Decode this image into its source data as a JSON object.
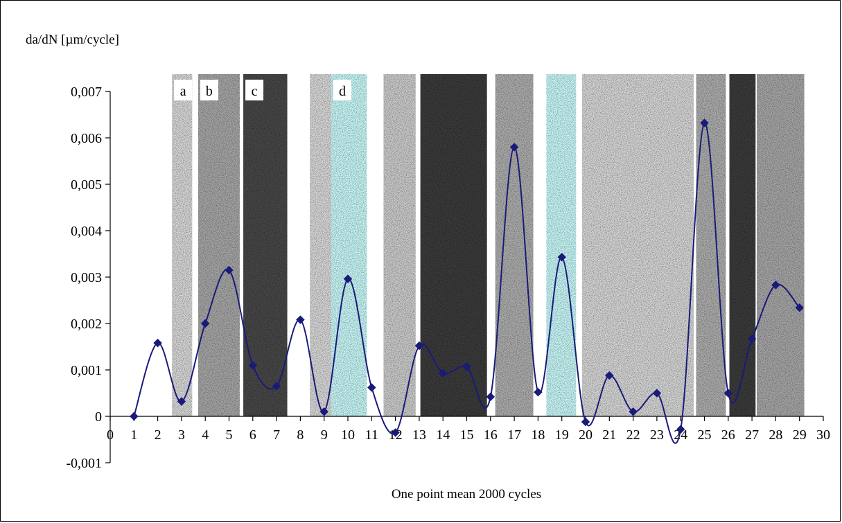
{
  "chart_data": {
    "type": "line",
    "title": "",
    "ylabel": "da/dN [µm/cycle]",
    "xlabel": "One point mean 2000 cycles",
    "xlim": [
      0,
      30
    ],
    "ylim": [
      -0.001,
      0.007
    ],
    "x_ticks": [
      "0",
      "1",
      "2",
      "3",
      "4",
      "5",
      "6",
      "7",
      "8",
      "9",
      "10",
      "11",
      "12",
      "13",
      "14",
      "15",
      "16",
      "17",
      "18",
      "19",
      "20",
      "21",
      "22",
      "23",
      "24",
      "25",
      "26",
      "27",
      "28",
      "29",
      "30"
    ],
    "y_ticks": [
      "-0,001",
      "0",
      "0,001",
      "0,002",
      "0,003",
      "0,004",
      "0,005",
      "0,006",
      "0,007"
    ],
    "y_tick_values": [
      -0.001,
      0,
      0.001,
      0.002,
      0.003,
      0.004,
      0.005,
      0.006,
      0.007
    ],
    "grid": false,
    "legend": "none",
    "series": [
      {
        "x": [
          1,
          2,
          3,
          4,
          5,
          6,
          7,
          8,
          9,
          10,
          11,
          12,
          13,
          14,
          15,
          16,
          17,
          18,
          19,
          20,
          21,
          22,
          23,
          24,
          25,
          26,
          27,
          28,
          29
        ],
        "values": [
          0,
          0.00158,
          0.00032,
          0.002,
          0.00315,
          0.0011,
          0.00065,
          0.00208,
          0.0001,
          0.00296,
          0.00062,
          -0.00035,
          0.00152,
          0.00093,
          0.00107,
          0.00042,
          0.0058,
          0.00052,
          0.00343,
          -0.00012,
          0.00088,
          0.0001,
          0.0005,
          -0.00028,
          0.00632,
          0.0005,
          0.00167,
          0.00283,
          0.00234
        ],
        "color": "#1a1a7a"
      }
    ],
    "bands": [
      {
        "x0": 2.6,
        "x1": 3.45,
        "label": "a",
        "fill": "#dcdcdc"
      },
      {
        "x0": 3.7,
        "x1": 5.45,
        "label": "b",
        "fill": "#a9a9a9"
      },
      {
        "x0": 5.6,
        "x1": 7.45,
        "label": "c",
        "fill": "#4a4a4a"
      },
      {
        "x0": 8.4,
        "x1": 9.3,
        "label": "",
        "fill": "#dcdcdc"
      },
      {
        "x0": 9.3,
        "x1": 10.8,
        "label": "d",
        "fill": "#ccfcfc"
      },
      {
        "x0": 11.5,
        "x1": 12.85,
        "label": "",
        "fill": "#cfcfcf"
      },
      {
        "x0": 13.05,
        "x1": 15.85,
        "label": "",
        "fill": "#3d3d3d"
      },
      {
        "x0": 16.2,
        "x1": 17.8,
        "label": "",
        "fill": "#b0b0b0"
      },
      {
        "x0": 18.35,
        "x1": 19.6,
        "label": "",
        "fill": "#ccfcfc"
      },
      {
        "x0": 19.85,
        "x1": 24.55,
        "label": "",
        "fill": "#dadada"
      },
      {
        "x0": 24.65,
        "x1": 25.9,
        "label": "",
        "fill": "#b0b0b0"
      },
      {
        "x0": 26.05,
        "x1": 27.15,
        "label": "",
        "fill": "#3d3d3d"
      },
      {
        "x0": 27.2,
        "x1": 29.2,
        "label": "",
        "fill": "#a9a9a9"
      }
    ]
  }
}
